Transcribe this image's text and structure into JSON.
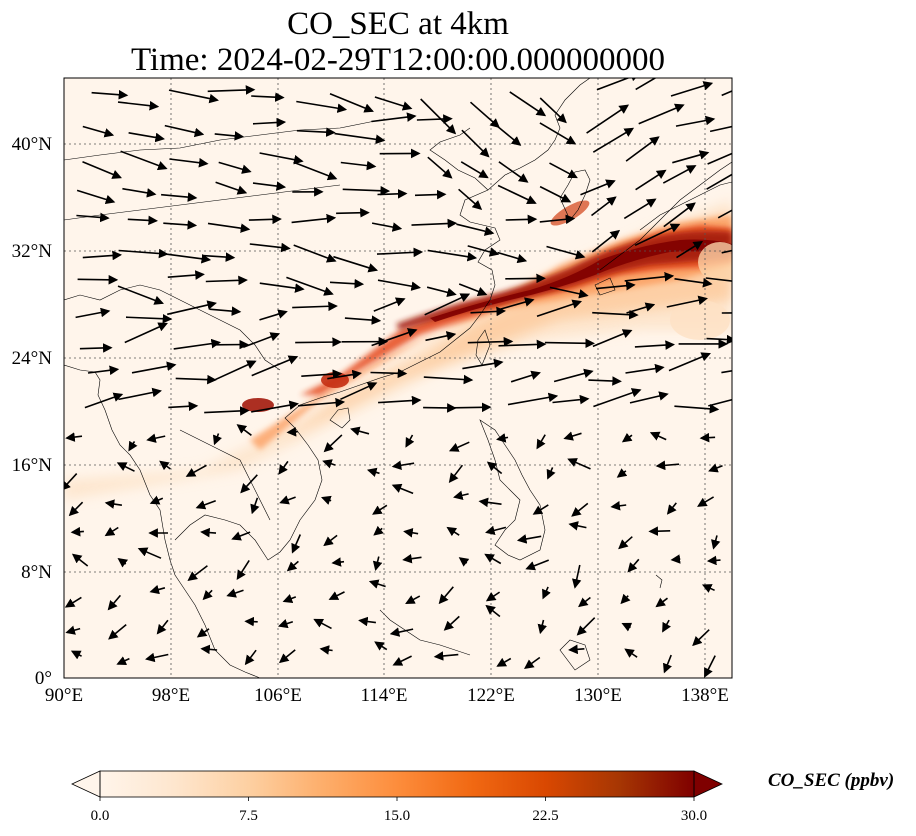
{
  "title": {
    "line1": "CO_SEC at 4km",
    "line2": "Time: 2024-02-29T12:00:00.000000000"
  },
  "map": {
    "extent": {
      "lon_min": 90,
      "lon_max": 140,
      "lat_min": 0,
      "lat_max": 45
    },
    "lat_ticks": [
      {
        "value": 0,
        "label": "0°"
      },
      {
        "value": 8,
        "label": "8°N"
      },
      {
        "value": 16,
        "label": "16°N"
      },
      {
        "value": 24,
        "label": "24°N"
      },
      {
        "value": 32,
        "label": "32°N"
      },
      {
        "value": 40,
        "label": "40°N"
      }
    ],
    "lon_ticks": [
      {
        "value": 90,
        "label": "90°E"
      },
      {
        "value": 98,
        "label": "98°E"
      },
      {
        "value": 106,
        "label": "106°E"
      },
      {
        "value": 114,
        "label": "114°E"
      },
      {
        "value": 122,
        "label": "122°E"
      },
      {
        "value": 130,
        "label": "130°E"
      },
      {
        "value": 138,
        "label": "138°E"
      }
    ],
    "gridlines": true,
    "background_color": "#fff5eb",
    "plume_core_color": "#8b0000"
  },
  "colorbar": {
    "label": "CO_SEC (ppbv)",
    "min": 0.0,
    "max": 30.0,
    "ticks": [
      "0.0",
      "7.5",
      "15.0",
      "22.5",
      "30.0"
    ],
    "extend": "both",
    "colors": [
      "#fff5eb",
      "#fee6ce",
      "#fdd0a2",
      "#fdae6b",
      "#fd8d3c",
      "#f16913",
      "#d94801",
      "#a63603",
      "#7f0000"
    ]
  }
}
